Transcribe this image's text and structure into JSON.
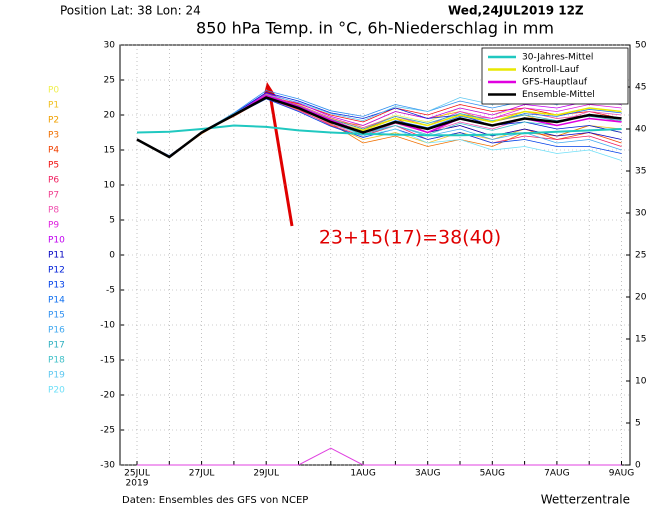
{
  "header": {
    "position": "Position   Lat: 38 Lon: 24",
    "date": "Wed,24JUL2019 12Z"
  },
  "footer": {
    "source": "Daten: Ensembles des GFS von NCEP",
    "brand": "Wetterzentrale"
  },
  "chart_data": {
    "type": "line",
    "title": "850 hPa Temp. in °C, 6h-Niederschlag in mm",
    "annotation": "23+15(17)=38(40)",
    "categories": [
      "25JUL",
      null,
      "27JUL",
      null,
      "29JUL",
      null,
      null,
      "1AUG",
      null,
      "3AUG",
      null,
      "5AUG",
      null,
      "7AUG",
      null,
      "9AUG"
    ],
    "x_sublabel": "2019",
    "ylim": [
      -30,
      30
    ],
    "yticks": [
      -30,
      -25,
      -20,
      -15,
      -10,
      -5,
      0,
      5,
      10,
      15,
      20,
      25,
      30
    ],
    "y2lim": [
      0,
      50
    ],
    "y2ticks": [
      0,
      5,
      10,
      15,
      20,
      25,
      30,
      35,
      40,
      45,
      50
    ],
    "grid": true,
    "legend": "upper right",
    "members": [
      {
        "name": "P0",
        "color": "#f0f050",
        "values": [
          16.5,
          14,
          17.4,
          20.1,
          22.8,
          21.5,
          19.5,
          18,
          20,
          19,
          21,
          20,
          21,
          20,
          21,
          20.5
        ]
      },
      {
        "name": "P1",
        "color": "#f0c020",
        "values": [
          16.4,
          13.9,
          17.6,
          19.9,
          22.3,
          20.7,
          18.6,
          16.5,
          17.5,
          16,
          17.5,
          16.5,
          18,
          17,
          18.5,
          18
        ]
      },
      {
        "name": "P2",
        "color": "#f0a000",
        "values": [
          16.6,
          14.1,
          17.5,
          20.2,
          23,
          21.3,
          19.2,
          18.5,
          20.5,
          19.5,
          20.5,
          19,
          20,
          18.5,
          19.5,
          19
        ]
      },
      {
        "name": "P3",
        "color": "#f07000",
        "values": [
          16.5,
          14,
          17.3,
          20,
          22.6,
          20.9,
          18.8,
          16,
          17,
          15.5,
          16.5,
          15.5,
          17.5,
          17,
          18.5,
          17.5
        ]
      },
      {
        "name": "P4",
        "color": "#f04000",
        "values": [
          16.5,
          14.2,
          17.5,
          19.8,
          22.4,
          21.2,
          19.4,
          18,
          19.5,
          17.5,
          18.5,
          17,
          18,
          16.5,
          17.5,
          16
        ]
      },
      {
        "name": "P5",
        "color": "#f01010",
        "values": [
          16.4,
          14,
          17.6,
          20,
          22.7,
          21.6,
          20,
          19,
          21,
          20,
          21.5,
          20.5,
          21,
          20,
          20.5,
          19.5
        ]
      },
      {
        "name": "P6",
        "color": "#f02060",
        "values": [
          16.6,
          13.9,
          17.4,
          20.1,
          22.5,
          20.8,
          18.5,
          17,
          18.5,
          16.5,
          17.5,
          16,
          17,
          16.5,
          17,
          15.5
        ]
      },
      {
        "name": "P7",
        "color": "#f04090",
        "values": [
          16.5,
          14.1,
          17.5,
          20.2,
          22.9,
          21.4,
          19.6,
          18.2,
          19.8,
          18.5,
          20,
          19.5,
          20.5,
          19.5,
          20,
          19
        ]
      },
      {
        "name": "P8",
        "color": "#f050b0",
        "values": [
          16.5,
          14,
          17.6,
          19.9,
          22.4,
          20.6,
          18.7,
          17.2,
          18.8,
          17.5,
          19,
          18,
          19.5,
          19,
          20.5,
          20
        ]
      },
      {
        "name": "P9",
        "color": "#e020e0",
        "values": [
          16.4,
          14,
          17.5,
          20,
          22.6,
          21,
          19.1,
          17.8,
          19.5,
          18.5,
          20.5,
          19.5,
          21,
          20.5,
          21.5,
          21
        ]
      },
      {
        "name": "P10",
        "color": "#c000f0",
        "values": [
          16.6,
          14.1,
          17.4,
          20.1,
          23.1,
          21.7,
          19.8,
          18.5,
          20.5,
          19.5,
          21,
          20,
          21.5,
          21,
          22,
          21.5
        ]
      },
      {
        "name": "P11",
        "color": "#0000c0",
        "values": [
          16.5,
          13.9,
          17.5,
          20,
          22.5,
          21.2,
          19.3,
          17.6,
          19,
          17.5,
          18.5,
          17,
          18,
          17,
          17.5,
          16.5
        ]
      },
      {
        "name": "P12",
        "color": "#0020d8",
        "values": [
          16.5,
          14,
          17.6,
          20.2,
          23.2,
          22,
          20.3,
          19.5,
          21,
          19.5,
          20,
          18.5,
          19,
          18,
          18.5,
          17.5
        ]
      },
      {
        "name": "P13",
        "color": "#0040e8",
        "values": [
          16.4,
          14.1,
          17.5,
          19.9,
          22.3,
          20.5,
          18.4,
          16.8,
          18,
          16.5,
          17.5,
          16,
          16.5,
          15.5,
          15.5,
          14.5
        ]
      },
      {
        "name": "P14",
        "color": "#1070f0",
        "values": [
          16.6,
          14,
          17.4,
          20,
          22.7,
          21.1,
          19,
          17.4,
          19.2,
          18.2,
          19.8,
          19,
          20.2,
          19.8,
          20.8,
          20.3
        ]
      },
      {
        "name": "P15",
        "color": "#3090f0",
        "values": [
          16.5,
          14.2,
          17.5,
          20.3,
          23.5,
          22.3,
          20.6,
          19.8,
          21.5,
          20.5,
          22,
          21,
          22,
          21.5,
          22.5,
          22
        ]
      },
      {
        "name": "P16",
        "color": "#40a8f0",
        "values": [
          16.5,
          13.9,
          17.6,
          20,
          22.6,
          21,
          19.2,
          17.5,
          18.5,
          17,
          18,
          16.5,
          17.5,
          16,
          16.5,
          15
        ]
      },
      {
        "name": "P17",
        "color": "#30b0c0",
        "values": [
          16.4,
          14,
          17.5,
          20.1,
          22.8,
          21.3,
          19.4,
          18,
          19.8,
          18.8,
          20.2,
          19.2,
          20,
          19.2,
          19.8,
          19.2
        ]
      },
      {
        "name": "P18",
        "color": "#40c0c8",
        "values": [
          16.6,
          14.1,
          17.4,
          19.9,
          22.5,
          20.9,
          18.9,
          17.2,
          18.5,
          17.2,
          18.8,
          17.8,
          19,
          18.5,
          19.5,
          19
        ]
      },
      {
        "name": "P19",
        "color": "#60c8f0",
        "values": [
          16.5,
          14,
          17.5,
          20,
          22.9,
          21.8,
          20.2,
          19.2,
          21.2,
          20.5,
          22.5,
          21.5,
          22.5,
          22,
          23,
          22.5
        ]
      },
      {
        "name": "P20",
        "color": "#70e0f8",
        "values": [
          16.5,
          14.1,
          17.6,
          20.2,
          22.7,
          21.1,
          19,
          17,
          18,
          16,
          16.5,
          15,
          15.5,
          14.5,
          15,
          13.5
        ]
      }
    ],
    "series": [
      {
        "name": "30-Jahres-Mittel",
        "color": "#20c8c0",
        "width": 2,
        "values": [
          17.5,
          17.6,
          18,
          18.5,
          18.3,
          17.8,
          17.5,
          17.3,
          17.2,
          17.1,
          17.1,
          17.2,
          17.4,
          17.6,
          17.8,
          18
        ]
      },
      {
        "name": "Kontroll-Lauf",
        "color": "#e8e800",
        "width": 1.5,
        "values": [
          16.5,
          14,
          17.5,
          20,
          22.6,
          21,
          19,
          17.8,
          19.5,
          18.5,
          20,
          19,
          20.5,
          20,
          21,
          20.5
        ]
      },
      {
        "name": "GFS-Hauptlauf",
        "color": "#e000e0",
        "width": 1.5,
        "values": [
          16.5,
          14,
          17.5,
          20,
          22.8,
          21.2,
          19.3,
          17.5,
          19,
          17.5,
          19.5,
          18.5,
          19.5,
          18.5,
          19.5,
          19
        ]
      },
      {
        "name": "Ensemble-Mittel",
        "color": "#000000",
        "width": 2.5,
        "values": [
          16.5,
          14,
          17.5,
          20,
          22.5,
          21,
          19,
          17.5,
          19,
          18,
          19.5,
          18.5,
          19.5,
          19,
          20,
          19.5
        ]
      }
    ],
    "precipitation": {
      "axis": "y2",
      "color": "#e040e0",
      "values": [
        0,
        0,
        0,
        0,
        0,
        0,
        2,
        0,
        0,
        0,
        0,
        0,
        0,
        0,
        0,
        0
      ]
    }
  }
}
